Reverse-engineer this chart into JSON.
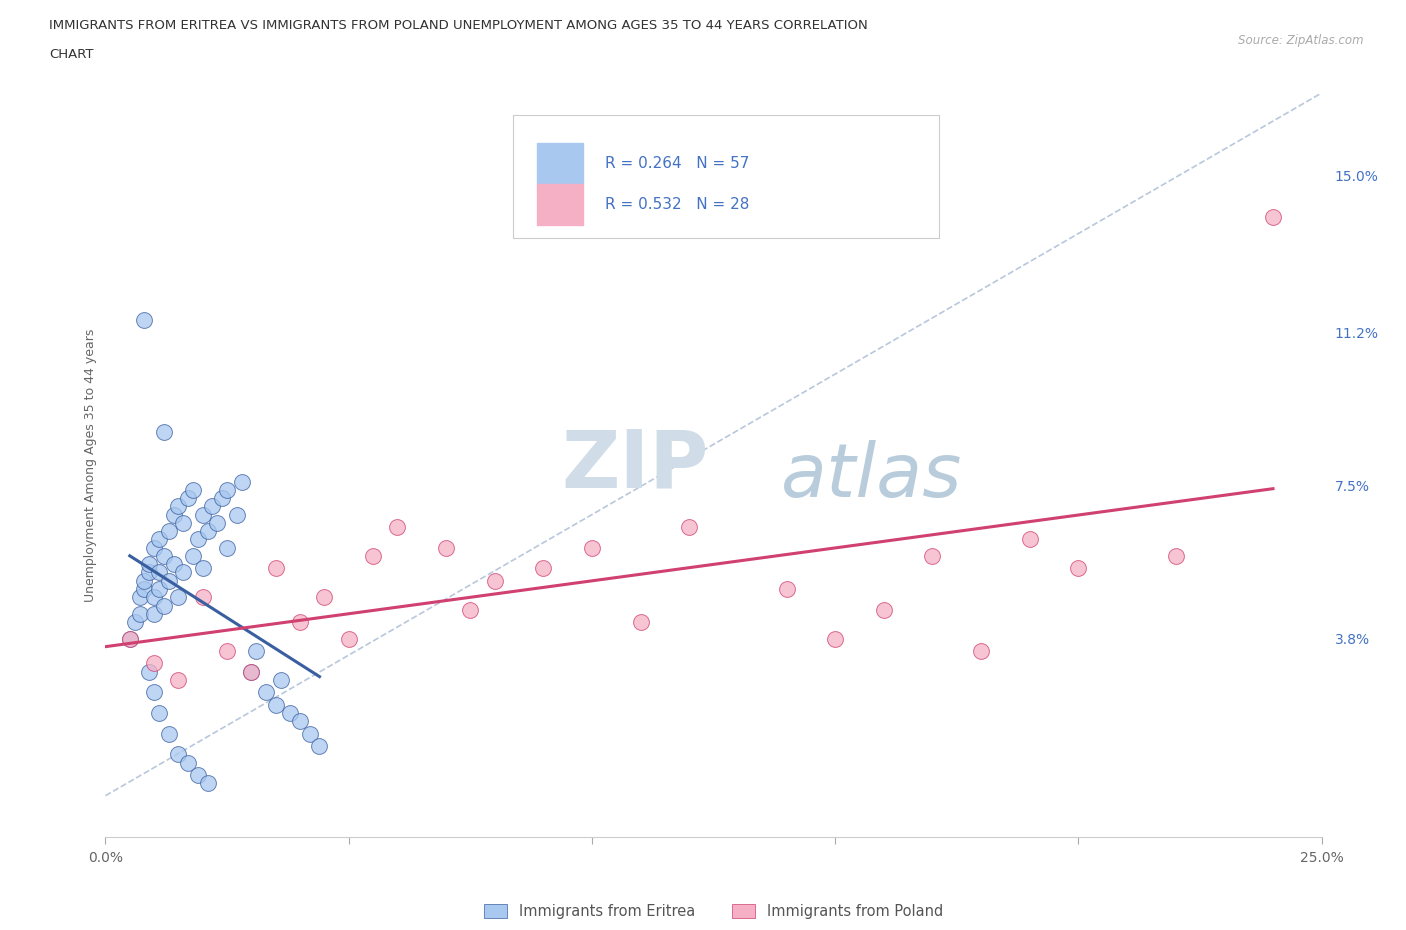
{
  "title_line1": "IMMIGRANTS FROM ERITREA VS IMMIGRANTS FROM POLAND UNEMPLOYMENT AMONG AGES 35 TO 44 YEARS CORRELATION",
  "title_line2": "CHART",
  "source": "Source: ZipAtlas.com",
  "ylabel": "Unemployment Among Ages 35 to 44 years",
  "xlim": [
    0.0,
    0.25
  ],
  "ylim": [
    -0.01,
    0.17
  ],
  "ytick_positions": [
    0.038,
    0.075,
    0.112,
    0.15
  ],
  "ytick_labels": [
    "3.8%",
    "7.5%",
    "11.2%",
    "15.0%"
  ],
  "r_eritrea": 0.264,
  "n_eritrea": 57,
  "r_poland": 0.532,
  "n_poland": 28,
  "color_eritrea": "#a8c8f0",
  "color_poland": "#f5b0c5",
  "line_color_eritrea": "#3a5fa0",
  "line_color_poland": "#d04070",
  "scatter_eritrea_x": [
    0.005,
    0.006,
    0.007,
    0.007,
    0.008,
    0.008,
    0.009,
    0.009,
    0.01,
    0.01,
    0.01,
    0.011,
    0.011,
    0.011,
    0.012,
    0.012,
    0.013,
    0.013,
    0.014,
    0.014,
    0.015,
    0.015,
    0.016,
    0.016,
    0.017,
    0.018,
    0.018,
    0.019,
    0.02,
    0.02,
    0.021,
    0.022,
    0.023,
    0.024,
    0.025,
    0.025,
    0.027,
    0.028,
    0.03,
    0.031,
    0.033,
    0.035,
    0.036,
    0.038,
    0.04,
    0.042,
    0.044,
    0.009,
    0.01,
    0.011,
    0.013,
    0.015,
    0.017,
    0.019,
    0.021,
    0.008,
    0.012
  ],
  "scatter_eritrea_y": [
    0.038,
    0.042,
    0.044,
    0.048,
    0.05,
    0.052,
    0.054,
    0.056,
    0.044,
    0.048,
    0.06,
    0.05,
    0.054,
    0.062,
    0.046,
    0.058,
    0.052,
    0.064,
    0.056,
    0.068,
    0.048,
    0.07,
    0.054,
    0.066,
    0.072,
    0.058,
    0.074,
    0.062,
    0.055,
    0.068,
    0.064,
    0.07,
    0.066,
    0.072,
    0.06,
    0.074,
    0.068,
    0.076,
    0.03,
    0.035,
    0.025,
    0.022,
    0.028,
    0.02,
    0.018,
    0.015,
    0.012,
    0.03,
    0.025,
    0.02,
    0.015,
    0.01,
    0.008,
    0.005,
    0.003,
    0.115,
    0.088
  ],
  "scatter_poland_x": [
    0.005,
    0.01,
    0.015,
    0.02,
    0.025,
    0.03,
    0.035,
    0.04,
    0.045,
    0.05,
    0.055,
    0.06,
    0.07,
    0.075,
    0.08,
    0.09,
    0.1,
    0.11,
    0.12,
    0.14,
    0.15,
    0.16,
    0.17,
    0.18,
    0.19,
    0.2,
    0.22,
    0.24
  ],
  "scatter_poland_y": [
    0.038,
    0.032,
    0.028,
    0.048,
    0.035,
    0.03,
    0.055,
    0.042,
    0.048,
    0.038,
    0.058,
    0.065,
    0.06,
    0.045,
    0.052,
    0.055,
    0.06,
    0.042,
    0.065,
    0.05,
    0.038,
    0.045,
    0.058,
    0.035,
    0.062,
    0.055,
    0.058,
    0.14
  ],
  "dashed_line_x": [
    0.0,
    0.25
  ],
  "dashed_line_y": [
    0.0,
    0.17
  ],
  "background_color": "#ffffff",
  "grid_color": "#e5e5e5",
  "watermark_zip_color": "#d0dce8",
  "watermark_atlas_color": "#b8ccdc"
}
